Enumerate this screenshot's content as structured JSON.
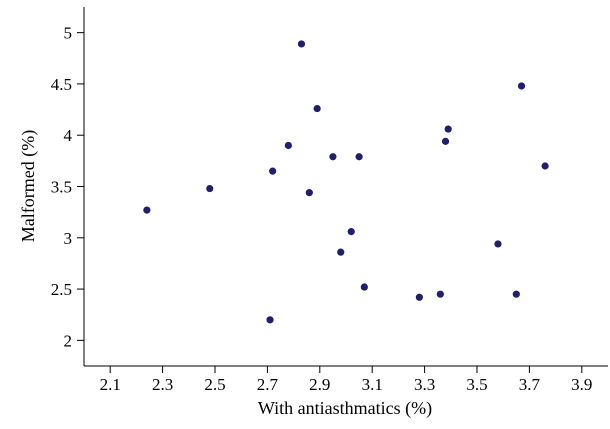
{
  "chart_data": {
    "type": "scatter",
    "xlabel": "With antiasthmatics (%)",
    "ylabel": "Malformed (%)",
    "xlim": [
      2.0,
      4.0
    ],
    "ylim": [
      1.75,
      5.25
    ],
    "x_ticks": [
      "2.1",
      "2.3",
      "2.5",
      "2.7",
      "2.9",
      "3.1",
      "3.3",
      "3.5",
      "3.7",
      "3.9"
    ],
    "y_ticks": [
      "2",
      "2.5",
      "3",
      "3.5",
      "4",
      "4.5",
      "5"
    ],
    "grid": false,
    "marker_color": "#1f1f6e",
    "points": [
      {
        "x": 2.24,
        "y": 3.27
      },
      {
        "x": 2.48,
        "y": 3.48
      },
      {
        "x": 2.71,
        "y": 2.2
      },
      {
        "x": 2.72,
        "y": 3.65
      },
      {
        "x": 2.78,
        "y": 3.9
      },
      {
        "x": 2.83,
        "y": 4.89
      },
      {
        "x": 2.86,
        "y": 3.44
      },
      {
        "x": 2.89,
        "y": 4.26
      },
      {
        "x": 2.95,
        "y": 3.79
      },
      {
        "x": 2.98,
        "y": 2.86
      },
      {
        "x": 3.02,
        "y": 3.06
      },
      {
        "x": 3.05,
        "y": 3.79
      },
      {
        "x": 3.07,
        "y": 2.52
      },
      {
        "x": 3.28,
        "y": 2.42
      },
      {
        "x": 3.36,
        "y": 2.45
      },
      {
        "x": 3.38,
        "y": 3.94
      },
      {
        "x": 3.39,
        "y": 4.06
      },
      {
        "x": 3.58,
        "y": 2.94
      },
      {
        "x": 3.65,
        "y": 2.45
      },
      {
        "x": 3.67,
        "y": 4.48
      },
      {
        "x": 3.76,
        "y": 3.7
      }
    ]
  }
}
